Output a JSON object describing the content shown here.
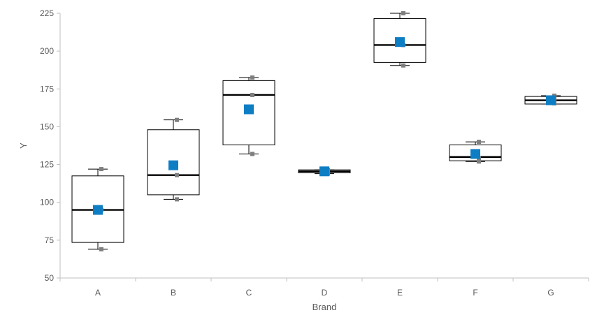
{
  "chart_data": {
    "type": "box",
    "xlabel": "Brand",
    "ylabel": "Y",
    "ylim": [
      50,
      225
    ],
    "yticks": [
      50,
      75,
      100,
      125,
      150,
      175,
      200,
      225
    ],
    "categories": [
      "A",
      "B",
      "C",
      "D",
      "E",
      "F",
      "G"
    ],
    "boxes": [
      {
        "name": "A",
        "min": 69,
        "q1": 73.5,
        "median": 95,
        "q3": 117.5,
        "max": 122,
        "mean": 95,
        "points": [
          69,
          95,
          122
        ]
      },
      {
        "name": "B",
        "min": 102,
        "q1": 105,
        "median": 118,
        "q3": 148,
        "max": 154.5,
        "mean": 124.5,
        "points": [
          102,
          118,
          154.5
        ]
      },
      {
        "name": "C",
        "min": 132,
        "q1": 138,
        "median": 171,
        "q3": 180.5,
        "max": 182.5,
        "mean": 161.5,
        "points": [
          132,
          171,
          182.5
        ]
      },
      {
        "name": "D",
        "min": 119,
        "q1": 119.5,
        "median": 120.5,
        "q3": 121.5,
        "max": 121.5,
        "mean": 120.5,
        "points": [
          119,
          120.5,
          121.5
        ]
      },
      {
        "name": "E",
        "min": 190.5,
        "q1": 192.5,
        "median": 204,
        "q3": 221.5,
        "max": 225,
        "mean": 206,
        "points": [
          190.5,
          204,
          225
        ]
      },
      {
        "name": "F",
        "min": 127,
        "q1": 127.5,
        "median": 130,
        "q3": 138,
        "max": 140,
        "mean": 132,
        "points": [
          127,
          129,
          140
        ]
      },
      {
        "name": "G",
        "min": 165,
        "q1": 165,
        "median": 167.5,
        "q3": 170,
        "max": 170.5,
        "mean": 167.5,
        "points": [
          165.5,
          168.5,
          170.5
        ]
      }
    ],
    "colors": {
      "mean": "#0e7ec4",
      "points": "#7f7f7f",
      "box": "#000000",
      "axis": "#bfbfbf"
    },
    "legend": "none",
    "grid": false
  }
}
